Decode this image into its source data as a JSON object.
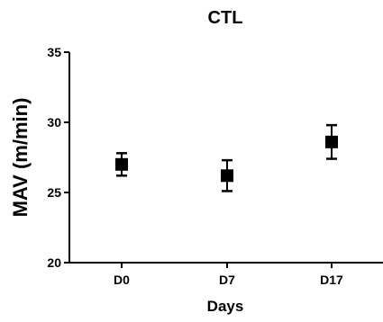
{
  "chart_data": {
    "type": "scatter",
    "title": "CTL",
    "xlabel": "Days",
    "ylabel": "MAV (m/min)",
    "categories": [
      "D0",
      "D7",
      "D17"
    ],
    "values": [
      27.0,
      26.2,
      28.6
    ],
    "error_low": [
      26.2,
      25.1,
      27.4
    ],
    "error_high": [
      27.8,
      27.3,
      29.8
    ],
    "ylim": [
      20,
      35
    ],
    "yticks": [
      20,
      25,
      30,
      35
    ],
    "grid": false,
    "legend": "none",
    "marker": "square",
    "color": "#000000"
  }
}
